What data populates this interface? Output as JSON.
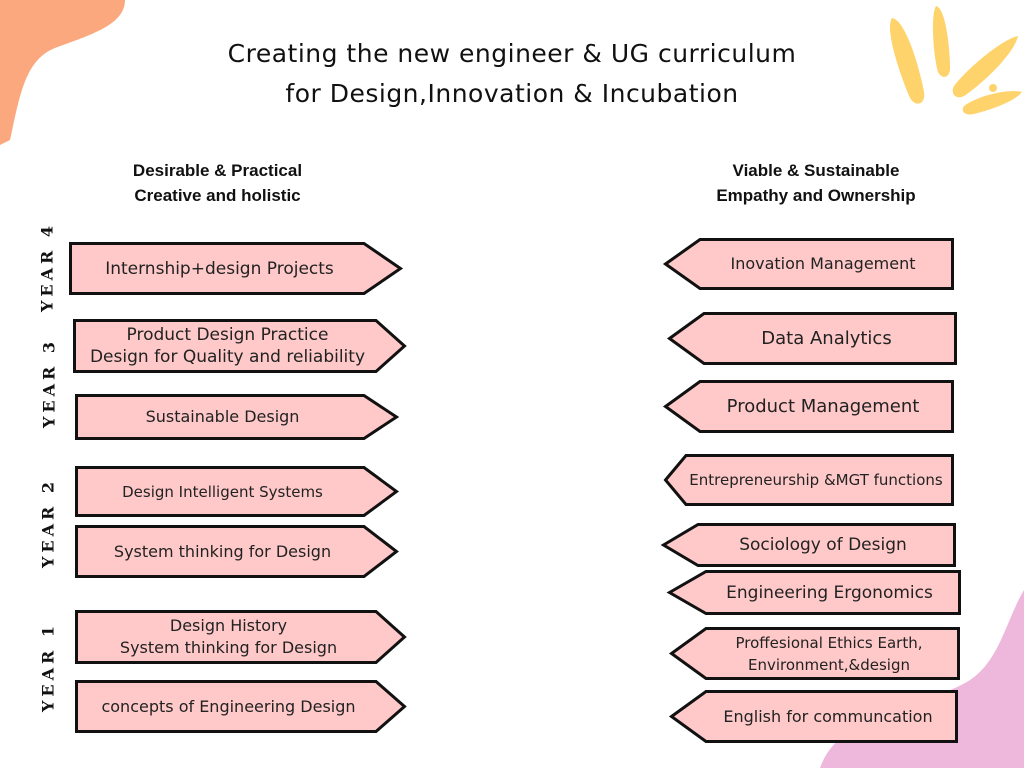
{
  "title": {
    "line1": "Creating the new engineer & UG curriculum",
    "line2": "for Design,Innovation & Incubation"
  },
  "left_header": {
    "line1": "Desirable & Practical",
    "line2": "Creative and holistic"
  },
  "right_header": {
    "line1": "Viable & Sustainable",
    "line2": "Empathy and Ownership"
  },
  "years": {
    "y4": "YEAR 4",
    "y3": "YEAR 3",
    "y2": "YEAR 2",
    "y1": "YEAR 1"
  },
  "left_arrows": [
    {
      "lines": [
        "Internship+design Projects"
      ]
    },
    {
      "lines": [
        "Product Design Practice",
        "Design for Quality and reliability"
      ]
    },
    {
      "lines": [
        "Sustainable Design"
      ]
    },
    {
      "lines": [
        "Design  Intelligent Systems"
      ]
    },
    {
      "lines": [
        "System thinking for Design"
      ]
    },
    {
      "lines": [
        "Design History",
        "System thinking for Design"
      ]
    },
    {
      "lines": [
        "concepts of Engineering  Design"
      ]
    }
  ],
  "right_arrows": [
    {
      "lines": [
        "Inovation Management"
      ]
    },
    {
      "lines": [
        "Data Analytics"
      ]
    },
    {
      "lines": [
        "Product Management"
      ]
    },
    {
      "lines": [
        "Entrepreneurship &MGT functions"
      ]
    },
    {
      "lines": [
        "Sociology  of Design"
      ]
    },
    {
      "lines": [
        "Engineering Ergonomics"
      ]
    },
    {
      "lines": [
        "Proffesional Ethics Earth,",
        "Environment,&design"
      ]
    },
    {
      "lines": [
        "English for communcation"
      ]
    }
  ],
  "colors": {
    "arrow_fill": "#FFC9C9",
    "arrow_stroke": "#111111",
    "accent_orange": "#FBA87E",
    "accent_yellow": "#FFD36B",
    "accent_pink": "#EEB8DC"
  }
}
